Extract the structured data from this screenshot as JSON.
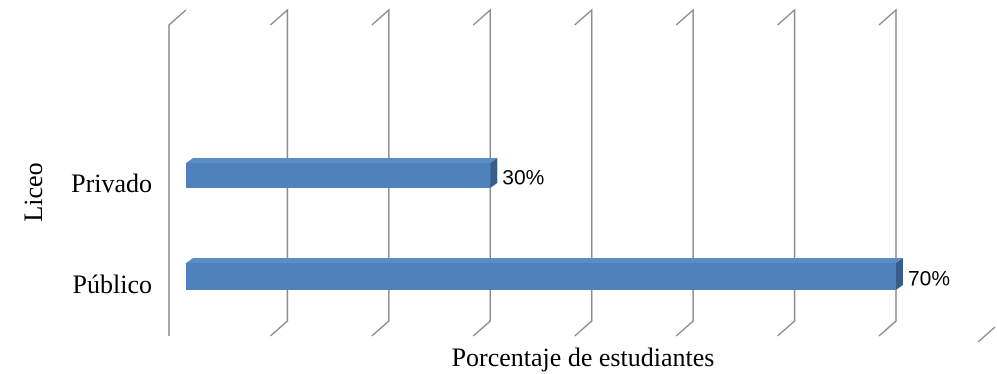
{
  "chart_data": {
    "type": "bar",
    "orientation": "horizontal",
    "style": "3d",
    "categories": [
      "Privado",
      "Público"
    ],
    "values": [
      30,
      70
    ],
    "value_labels": [
      "30%",
      "70%"
    ],
    "xlabel": "Porcentaje de estudiantes",
    "ylabel": "Liceo",
    "xlim": [
      0,
      70
    ],
    "x_tick_labels_shown": false,
    "grid": true,
    "legend": "none",
    "bar_color": "#4F81BD",
    "bar_top_color": "#5A8CC8",
    "bar_side_color": "#385D8A",
    "grid_color": "#8C8C8C"
  }
}
